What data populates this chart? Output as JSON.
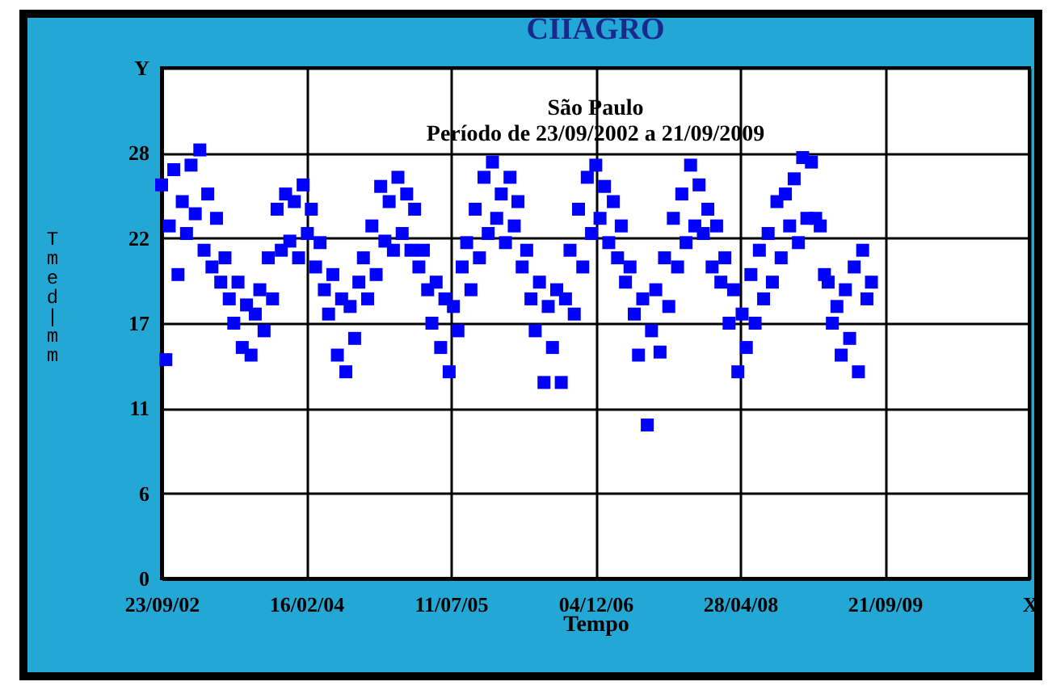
{
  "chart_data": {
    "type": "scatter",
    "title": "CIIAGRO",
    "subtitle": "São Paulo\nPeríodo de 23/09/2002 a 21/09/2009",
    "xlabel": "Tempo",
    "ylabel": "Tmed | mm",
    "x": [
      "2002-09-23",
      "2002-10-08",
      "2002-10-20",
      "2002-11-05",
      "2002-11-20",
      "2002-12-05",
      "2002-12-20",
      "2003-01-05",
      "2003-01-20",
      "2003-02-05",
      "2003-02-20",
      "2003-03-05",
      "2003-03-20",
      "2003-04-05",
      "2003-04-20",
      "2003-05-05",
      "2003-05-20",
      "2003-06-05",
      "2003-06-20",
      "2003-07-05",
      "2003-07-20",
      "2003-08-05",
      "2003-08-20",
      "2003-09-05",
      "2003-09-20",
      "2003-10-05",
      "2003-10-20",
      "2003-11-05",
      "2003-11-20",
      "2003-12-05",
      "2003-12-20",
      "2004-01-05",
      "2004-01-20",
      "2004-02-05",
      "2004-02-20",
      "2004-03-05",
      "2004-03-20",
      "2004-04-05",
      "2004-04-20",
      "2004-05-05",
      "2004-05-20",
      "2004-06-05",
      "2004-06-20",
      "2004-07-05",
      "2004-07-20",
      "2004-08-05",
      "2004-08-20",
      "2004-09-05",
      "2004-09-20",
      "2004-10-05",
      "2004-10-20",
      "2004-11-05",
      "2004-11-20",
      "2004-12-05",
      "2004-12-20",
      "2005-01-05",
      "2005-01-20",
      "2005-02-05",
      "2005-02-20",
      "2005-03-05",
      "2005-03-20",
      "2005-04-05",
      "2005-04-20",
      "2005-05-05",
      "2005-05-20",
      "2005-06-05",
      "2005-06-20",
      "2005-07-05",
      "2005-07-20",
      "2005-08-05",
      "2005-08-20",
      "2005-09-05",
      "2005-09-20",
      "2005-10-05",
      "2005-10-20",
      "2005-11-05",
      "2005-11-20",
      "2005-12-05",
      "2005-12-20",
      "2006-01-05",
      "2006-01-20",
      "2006-02-05",
      "2006-02-20",
      "2006-03-05",
      "2006-03-20",
      "2006-04-05",
      "2006-04-20",
      "2006-05-05",
      "2006-05-20",
      "2006-06-05",
      "2006-06-20",
      "2006-07-05",
      "2006-07-20",
      "2006-08-05",
      "2006-08-20",
      "2006-09-05",
      "2006-09-20",
      "2006-10-05",
      "2006-10-20",
      "2006-11-05",
      "2006-11-20",
      "2006-12-05",
      "2006-12-20",
      "2007-01-05",
      "2007-01-20",
      "2007-02-05",
      "2007-02-20",
      "2007-03-05",
      "2007-03-20",
      "2007-04-05",
      "2007-04-20",
      "2007-05-05",
      "2007-05-20",
      "2007-06-05",
      "2007-06-20",
      "2007-07-05",
      "2007-07-20",
      "2007-08-05",
      "2007-08-20",
      "2007-09-05",
      "2007-09-20",
      "2007-10-05",
      "2007-10-20",
      "2007-11-05",
      "2007-11-20",
      "2007-12-05",
      "2007-12-20",
      "2008-01-05",
      "2008-01-20",
      "2008-02-05",
      "2008-02-20",
      "2008-03-05",
      "2008-03-20",
      "2008-04-05",
      "2008-04-20",
      "2008-05-05",
      "2008-05-20",
      "2008-06-05",
      "2008-06-20",
      "2008-07-05",
      "2008-07-20",
      "2008-08-05",
      "2008-08-20",
      "2008-09-05",
      "2008-09-20",
      "2008-10-05",
      "2008-10-20",
      "2008-11-05",
      "2008-11-20",
      "2008-12-05",
      "2008-12-20",
      "2009-01-05",
      "2009-01-20",
      "2009-02-05",
      "2009-02-20",
      "2009-03-05",
      "2009-03-20",
      "2009-04-05",
      "2009-04-20",
      "2009-05-05",
      "2009-05-20",
      "2009-06-05",
      "2009-06-20",
      "2009-07-05",
      "2009-07-20",
      "2009-08-05"
    ],
    "series": [
      {
        "color": "#0000ff",
        "values": [
          25.9,
          14.4,
          23.2,
          26.9,
          20.0,
          24.8,
          22.7,
          27.2,
          24.0,
          28.2,
          21.6,
          25.3,
          20.5,
          23.7,
          19.5,
          21.1,
          18.4,
          16.8,
          19.5,
          15.2,
          18.0,
          14.7,
          17.4,
          19.0,
          16.3,
          21.1,
          18.4,
          24.3,
          21.6,
          25.3,
          22.2,
          24.8,
          21.1,
          25.9,
          22.7,
          24.3,
          20.5,
          22.1,
          19.0,
          17.4,
          20.0,
          14.7,
          18.4,
          13.6,
          17.9,
          15.8,
          19.5,
          21.1,
          18.4,
          23.2,
          20.0,
          25.8,
          22.2,
          24.8,
          21.6,
          26.4,
          22.7,
          25.3,
          21.6,
          24.3,
          20.5,
          21.6,
          19.0,
          16.8,
          19.5,
          15.2,
          18.4,
          13.6,
          17.9,
          16.3,
          20.5,
          22.1,
          19.0,
          24.3,
          21.1,
          26.4,
          22.7,
          27.4,
          23.7,
          25.3,
          22.1,
          26.4,
          23.2,
          24.8,
          20.5,
          21.6,
          18.4,
          16.3,
          19.5,
          12.9,
          17.9,
          15.2,
          19.0,
          12.9,
          18.4,
          21.6,
          17.4,
          24.3,
          20.5,
          26.4,
          22.7,
          27.2,
          23.7,
          25.8,
          22.1,
          24.8,
          21.1,
          23.2,
          19.5,
          20.5,
          17.4,
          14.7,
          18.4,
          10.1,
          16.3,
          19.0,
          14.9,
          21.1,
          17.9,
          23.7,
          20.5,
          25.3,
          22.1,
          27.2,
          23.2,
          25.9,
          22.7,
          24.3,
          20.5,
          23.2,
          19.5,
          21.1,
          16.8,
          19.0,
          13.6,
          17.4,
          15.2,
          20.0,
          16.8,
          21.6,
          18.4,
          22.7,
          19.5,
          24.8,
          21.1,
          25.3,
          23.2,
          26.3,
          22.1,
          27.7,
          23.7,
          27.4,
          23.7,
          23.2,
          20.0,
          19.5,
          16.8,
          17.9,
          14.7,
          19.0,
          15.8,
          20.5,
          13.6,
          21.6,
          18.4,
          19.5
        ]
      }
    ],
    "xlim": [
      "2002-09-23",
      "2011-02-14"
    ],
    "xticks": [
      {
        "value": "2002-09-23",
        "label": "23/09/02"
      },
      {
        "value": "2004-02-16",
        "label": "16/02/04"
      },
      {
        "value": "2005-07-11",
        "label": "11/07/05"
      },
      {
        "value": "2006-12-04",
        "label": "04/12/06"
      },
      {
        "value": "2008-04-28",
        "label": "28/04/08"
      },
      {
        "value": "2009-09-21",
        "label": "21/09/09"
      },
      {
        "value": "2011-02-14",
        "label": "X"
      }
    ],
    "ylim": [
      0,
      33.6
    ],
    "yticks": [
      0,
      {
        "value": 5.6,
        "label": "6"
      },
      {
        "value": 11.2,
        "label": "11"
      },
      {
        "value": 16.8,
        "label": "17"
      },
      {
        "value": 22.4,
        "label": "22"
      },
      {
        "value": 28,
        "label": "28"
      },
      {
        "value": 33.6,
        "label": "Y"
      }
    ],
    "grid": true,
    "marker": "square"
  }
}
